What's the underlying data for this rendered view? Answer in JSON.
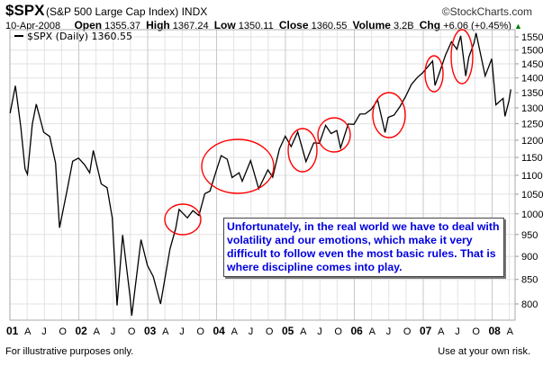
{
  "header": {
    "symbol": "$SPX",
    "name": "(S&P 500 Large Cap Index)",
    "exchange": "INDX",
    "brand": "©StockCharts.com"
  },
  "quote": {
    "date": "10-Apr-2008",
    "open_label": "Open",
    "open": "1355.37",
    "high_label": "High",
    "high": "1367.24",
    "low_label": "Low",
    "low": "1350.11",
    "close_label": "Close",
    "close": "1360.55",
    "volume_label": "Volume",
    "volume": "3.2B",
    "chg_label": "Chg",
    "chg": "+6.06 (+0.45%)",
    "direction": "up"
  },
  "footer": {
    "left": "For illustrative purposes only.",
    "right": "Use at your own risk."
  },
  "chart_data": {
    "type": "line",
    "legend": "$SPX (Daily) 1360.55",
    "legend_placement": "top-left",
    "yscale": "log",
    "ylim": [
      770,
      1580
    ],
    "grid": true,
    "yticks": [
      800,
      850,
      900,
      950,
      1000,
      1050,
      1100,
      1150,
      1200,
      1250,
      1300,
      1350,
      1400,
      1450,
      1500,
      1550
    ],
    "xticks": [
      "01",
      "A",
      "J",
      "O",
      "02",
      "A",
      "J",
      "O",
      "03",
      "A",
      "J",
      "O",
      "04",
      "A",
      "J",
      "O",
      "05",
      "A",
      "J",
      "O",
      "06",
      "A",
      "J",
      "O",
      "07",
      "A",
      "J",
      "O",
      "08",
      "A"
    ],
    "annotation": "Unfortunately, in the real world we have to deal with volatility and our emotions, which make it very difficult to follow even the most basic rules.  That is where discipline comes into play.",
    "annotation_color": "#0000e0",
    "highlight_color": "#ff0000",
    "line_color": "#000000",
    "series": [
      {
        "x": [
          "2001-01-02",
          "2001-01-30",
          "2001-02-28",
          "2001-03-22",
          "2001-04-04",
          "2001-04-30",
          "2001-05-21",
          "2001-06-29",
          "2001-07-31",
          "2001-08-31",
          "2001-09-21",
          "2001-10-31",
          "2001-11-30",
          "2001-12-31",
          "2002-01-31",
          "2002-02-28",
          "2002-03-19",
          "2002-04-30",
          "2002-05-31",
          "2002-06-28",
          "2002-07-23",
          "2002-08-22",
          "2002-09-30",
          "2002-10-09",
          "2002-11-27",
          "2002-12-31",
          "2003-01-31",
          "2003-03-11",
          "2003-04-30",
          "2003-05-30",
          "2003-06-17",
          "2003-07-31",
          "2003-08-29",
          "2003-09-30",
          "2003-10-31",
          "2003-11-28",
          "2003-12-31",
          "2004-01-26",
          "2004-02-27",
          "2004-03-24",
          "2004-04-30",
          "2004-05-17",
          "2004-06-30",
          "2004-08-12",
          "2004-09-30",
          "2004-10-25",
          "2004-11-30",
          "2004-12-31",
          "2005-01-31",
          "2005-03-07",
          "2005-04-20",
          "2005-05-31",
          "2005-06-30",
          "2005-08-02",
          "2005-08-31",
          "2005-09-30",
          "2005-10-20",
          "2005-11-30",
          "2005-12-30",
          "2006-01-31",
          "2006-02-28",
          "2006-03-31",
          "2006-05-05",
          "2006-06-13",
          "2006-06-30",
          "2006-07-31",
          "2006-08-31",
          "2006-09-29",
          "2006-10-31",
          "2006-11-30",
          "2006-12-29",
          "2007-02-20",
          "2007-03-05",
          "2007-03-30",
          "2007-04-30",
          "2007-05-31",
          "2007-06-29",
          "2007-07-19",
          "2007-08-15",
          "2007-08-31",
          "2007-09-28",
          "2007-10-09",
          "2007-11-26",
          "2007-12-31",
          "2008-01-22",
          "2008-02-29",
          "2008-03-10",
          "2008-03-31",
          "2008-04-10"
        ],
        "y": [
          1283,
          1373,
          1240,
          1118,
          1103,
          1249,
          1312,
          1224,
          1211,
          1134,
          966,
          1060,
          1139,
          1148,
          1130,
          1107,
          1170,
          1077,
          1067,
          990,
          797,
          949,
          815,
          777,
          938,
          880,
          856,
          800,
          917,
          964,
          1011,
          990,
          1008,
          996,
          1051,
          1058,
          1112,
          1155,
          1145,
          1094,
          1107,
          1084,
          1141,
          1064,
          1115,
          1095,
          1174,
          1212,
          1181,
          1225,
          1138,
          1192,
          1191,
          1245,
          1220,
          1229,
          1177,
          1249,
          1248,
          1280,
          1281,
          1295,
          1325,
          1223,
          1270,
          1277,
          1304,
          1336,
          1378,
          1401,
          1418,
          1460,
          1374,
          1421,
          1482,
          1531,
          1503,
          1554,
          1407,
          1474,
          1527,
          1565,
          1407,
          1468,
          1310,
          1331,
          1273,
          1323,
          1361
        ]
      }
    ]
  }
}
